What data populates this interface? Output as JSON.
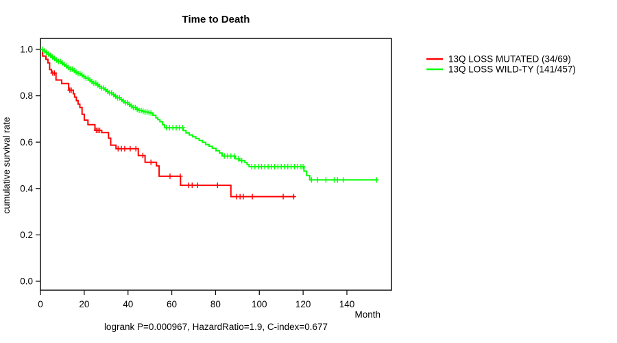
{
  "page": {
    "background": "#ffffff"
  },
  "chart_data": {
    "type": "line",
    "subtype": "kaplan-meier-step-curves",
    "title": "Time to Death",
    "xlabel": "Month",
    "ylabel": "cumulative survival rate",
    "annotation": "logrank P=0.000967, HazardRatio=1.9, C-index=0.677",
    "stats": {
      "logrank_p": "0.000967",
      "hazard_ratio": "1.9",
      "c_index": "0.677"
    },
    "xlim": [
      0,
      160
    ],
    "ylim": [
      0.0,
      1.04
    ],
    "grid": false,
    "legend_position": "right-outside",
    "xticks": [
      "0",
      "20",
      "40",
      "60",
      "80",
      "100",
      "120",
      "140"
    ],
    "xtick_values": [
      0,
      20,
      40,
      60,
      80,
      100,
      120,
      140
    ],
    "yticks": [
      "0.0",
      "0.2",
      "0.4",
      "0.6",
      "0.8",
      "1.0"
    ],
    "ytick_values": [
      0.0,
      0.2,
      0.4,
      0.6,
      0.8,
      1.0
    ],
    "series": [
      {
        "id": "mutated",
        "name": "13Q LOSS MUTATED (34/69)",
        "events_over_n": "34/69",
        "color": "#ff0000",
        "steps": [
          [
            0,
            1.0
          ],
          [
            1.0,
            0.971
          ],
          [
            2.5,
            0.957
          ],
          [
            3.4,
            0.942
          ],
          [
            4.2,
            0.913
          ],
          [
            5.0,
            0.898
          ],
          [
            7.1,
            0.868
          ],
          [
            9.7,
            0.853
          ],
          [
            12.9,
            0.824
          ],
          [
            15.0,
            0.809
          ],
          [
            15.6,
            0.794
          ],
          [
            16.4,
            0.779
          ],
          [
            17.2,
            0.764
          ],
          [
            18.0,
            0.749
          ],
          [
            19.0,
            0.72
          ],
          [
            20.0,
            0.695
          ],
          [
            21.7,
            0.675
          ],
          [
            24.9,
            0.651
          ],
          [
            28.0,
            0.641
          ],
          [
            31.1,
            0.617
          ],
          [
            32.1,
            0.587
          ],
          [
            34.5,
            0.572
          ],
          [
            44.7,
            0.542
          ],
          [
            47.8,
            0.513
          ],
          [
            53.0,
            0.498
          ],
          [
            54.2,
            0.453
          ],
          [
            64.0,
            0.414
          ],
          [
            87.0,
            0.365
          ],
          [
            116.2,
            0.365
          ]
        ],
        "censor_times": [
          5.6,
          6.4,
          13.4,
          14.1,
          25.5,
          26.3,
          27.1,
          35.5,
          37.0,
          38.5,
          41.0,
          43.6,
          46.8,
          50.5,
          59.2,
          63.9,
          67.7,
          69.3,
          71.8,
          80.9,
          89.6,
          91.2,
          92.7,
          96.8,
          110.9,
          115.7
        ]
      },
      {
        "id": "wildtype",
        "name": "13Q LOSS WILD-TY (141/457)",
        "events_over_n": "141/457",
        "color": "#00ff00",
        "steps": [
          [
            0,
            1.0
          ],
          [
            1.2,
            0.993
          ],
          [
            2.2,
            0.987
          ],
          [
            3.0,
            0.98
          ],
          [
            4.0,
            0.974
          ],
          [
            5.0,
            0.967
          ],
          [
            6.0,
            0.961
          ],
          [
            7.0,
            0.954
          ],
          [
            8.2,
            0.948
          ],
          [
            9.4,
            0.941
          ],
          [
            10.5,
            0.935
          ],
          [
            11.5,
            0.928
          ],
          [
            12.5,
            0.922
          ],
          [
            13.6,
            0.915
          ],
          [
            14.8,
            0.909
          ],
          [
            16.0,
            0.902
          ],
          [
            17.2,
            0.896
          ],
          [
            18.4,
            0.889
          ],
          [
            19.5,
            0.883
          ],
          [
            20.6,
            0.876
          ],
          [
            21.8,
            0.868
          ],
          [
            23.0,
            0.861
          ],
          [
            24.2,
            0.854
          ],
          [
            25.4,
            0.847
          ],
          [
            26.6,
            0.84
          ],
          [
            27.8,
            0.833
          ],
          [
            29.0,
            0.826
          ],
          [
            30.2,
            0.819
          ],
          [
            31.4,
            0.812
          ],
          [
            32.6,
            0.805
          ],
          [
            33.8,
            0.798
          ],
          [
            35.0,
            0.791
          ],
          [
            36.2,
            0.784
          ],
          [
            37.4,
            0.777
          ],
          [
            38.6,
            0.77
          ],
          [
            39.8,
            0.763
          ],
          [
            41.0,
            0.756
          ],
          [
            42.3,
            0.749
          ],
          [
            43.6,
            0.742
          ],
          [
            45.0,
            0.737
          ],
          [
            46.4,
            0.733
          ],
          [
            47.8,
            0.73
          ],
          [
            49.2,
            0.727
          ],
          [
            50.4,
            0.726
          ],
          [
            51.4,
            0.716
          ],
          [
            52.7,
            0.705
          ],
          [
            53.6,
            0.697
          ],
          [
            54.6,
            0.688
          ],
          [
            55.8,
            0.675
          ],
          [
            56.7,
            0.662
          ],
          [
            65.2,
            0.65
          ],
          [
            66.5,
            0.64
          ],
          [
            68.0,
            0.631
          ],
          [
            69.5,
            0.623
          ],
          [
            71.0,
            0.615
          ],
          [
            72.5,
            0.607
          ],
          [
            74.0,
            0.599
          ],
          [
            75.5,
            0.59
          ],
          [
            77.0,
            0.582
          ],
          [
            78.5,
            0.573
          ],
          [
            80.2,
            0.563
          ],
          [
            81.8,
            0.553
          ],
          [
            83.0,
            0.54
          ],
          [
            89.0,
            0.528
          ],
          [
            91.0,
            0.52
          ],
          [
            93.4,
            0.512
          ],
          [
            94.4,
            0.503
          ],
          [
            95.3,
            0.494
          ],
          [
            120.4,
            0.475
          ],
          [
            121.6,
            0.456
          ],
          [
            123.0,
            0.437
          ],
          [
            154.2,
            0.437
          ]
        ],
        "censor_times": [
          1.0,
          1.9,
          2.8,
          3.7,
          4.6,
          5.5,
          6.4,
          7.3,
          8.2,
          9.1,
          10.0,
          10.9,
          11.8,
          12.7,
          13.6,
          14.5,
          15.4,
          16.3,
          17.2,
          18.1,
          19.0,
          19.9,
          20.8,
          21.7,
          22.6,
          23.5,
          24.4,
          25.3,
          26.2,
          27.1,
          28.0,
          28.9,
          29.8,
          30.7,
          31.6,
          32.5,
          33.4,
          34.3,
          35.2,
          36.1,
          37.0,
          37.9,
          38.8,
          39.7,
          40.6,
          41.5,
          42.4,
          43.3,
          44.2,
          45.1,
          46.0,
          46.9,
          47.8,
          48.7,
          49.6,
          50.5,
          57.5,
          59.0,
          60.5,
          62.0,
          63.5,
          65.0,
          84.0,
          85.5,
          87.0,
          88.5,
          90.5,
          92.0,
          96.5,
          98.0,
          99.5,
          101.0,
          102.5,
          104.0,
          105.5,
          107.0,
          108.5,
          110.0,
          111.5,
          113.0,
          114.5,
          116.0,
          117.5,
          119.0,
          120.0,
          123.8,
          126.6,
          130.4,
          134.2,
          135.7,
          138.3,
          153.5
        ]
      }
    ]
  }
}
